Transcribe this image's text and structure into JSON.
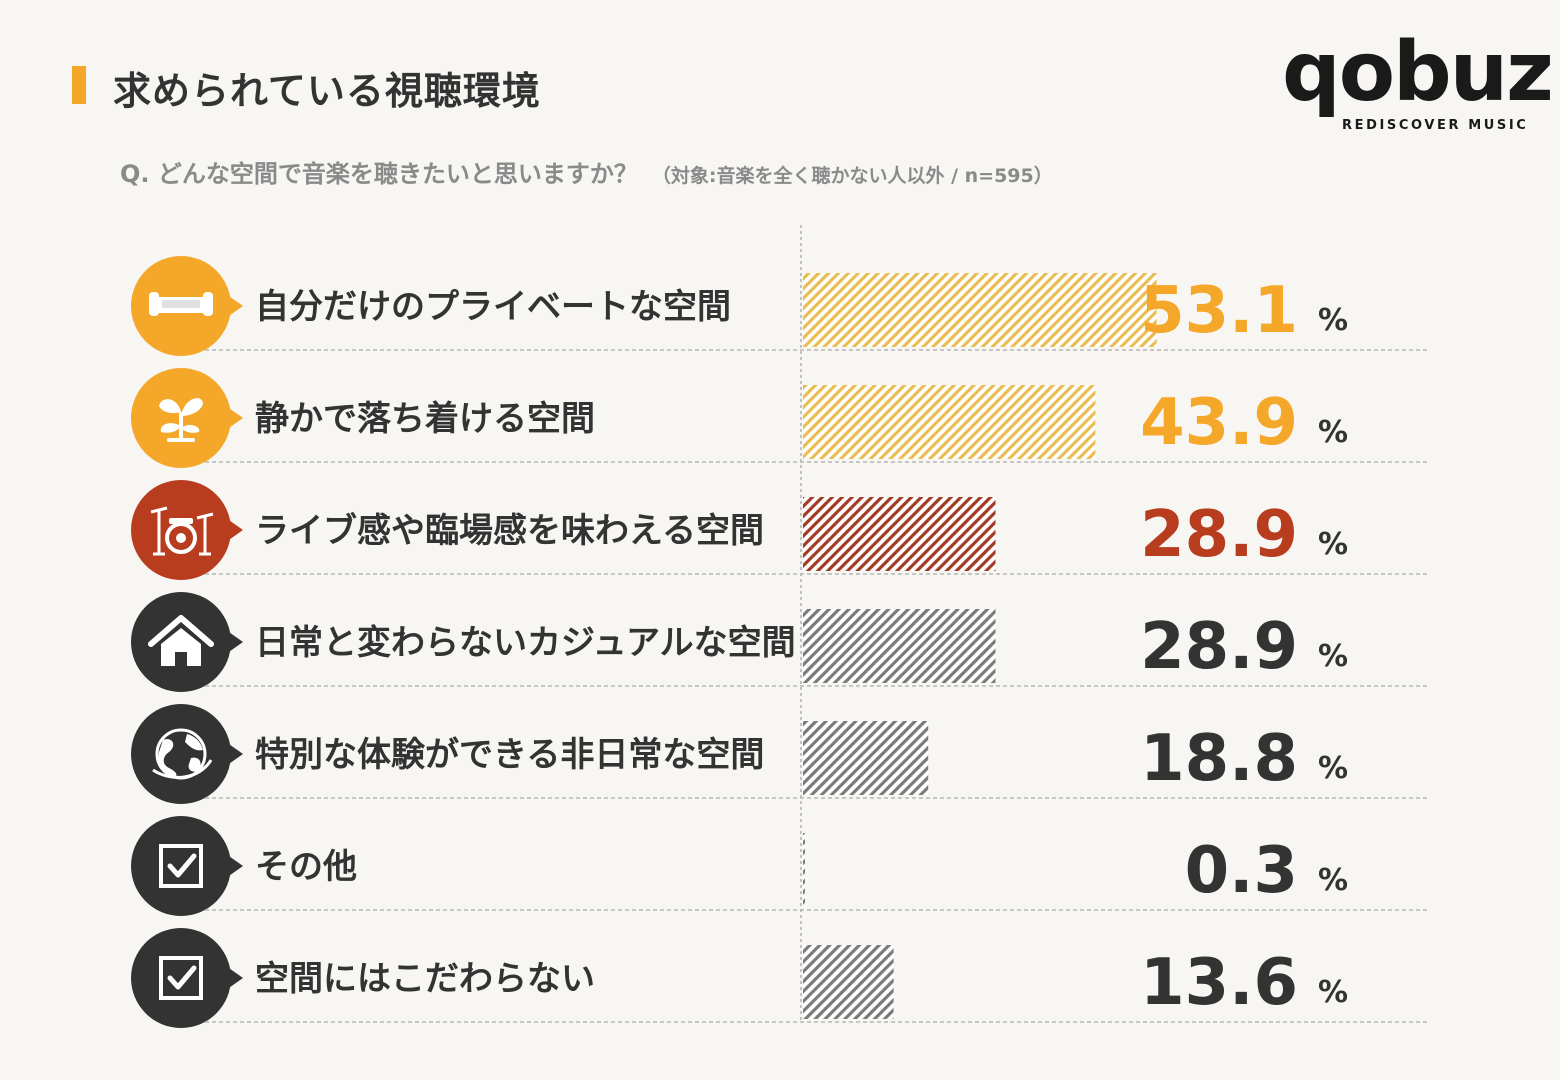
{
  "header": {
    "title": "求められている視聴環境",
    "question": "Q. どんな空間で音楽を聴きたいと思いますか？",
    "note": "（対象:音楽を全く聴かない人以外 / n=595）"
  },
  "logo": {
    "wordmark": "qobuz",
    "tagline": "REDISCOVER MUSIC"
  },
  "colors": {
    "accent": "#f4a728",
    "highlight_value": "#f4a728",
    "drum_accent": "#b83c1e",
    "dark": "#333333",
    "bar_gold": "#e9bd52",
    "bar_red": "#a13a24",
    "bar_gray": "#7a7a7a"
  },
  "chart_data": {
    "type": "bar",
    "orientation": "horizontal",
    "unit": "%",
    "xlim": [
      0,
      100
    ],
    "categories": [
      "自分だけのプライベートな空間",
      "静かで落ち着ける空間",
      "ライブ感や臨場感を味わえる空間",
      "日常と変わらないカジュアルな空間",
      "特別な体験ができる非日常な空間",
      "その他",
      "空間にはこだわらない"
    ],
    "values": [
      53.1,
      43.9,
      28.9,
      28.9,
      18.8,
      0.3,
      13.6
    ],
    "value_labels": [
      "53.1",
      "43.9",
      "28.9",
      "28.9",
      "18.8",
      "0.3",
      "13.6"
    ],
    "icons": [
      "sofa-icon",
      "sprout-icon",
      "drum-kit-icon",
      "house-icon",
      "globe-icon",
      "checkbox-icon",
      "checkbox-icon"
    ],
    "bar_colors": [
      "#e9bd52",
      "#e9bd52",
      "#a13a24",
      "#7a7a7a",
      "#7a7a7a",
      "#7a7a7a",
      "#7a7a7a"
    ],
    "icon_colors": [
      "#f4a728",
      "#f4a728",
      "#b83c1e",
      "#333333",
      "#333333",
      "#333333",
      "#333333"
    ],
    "value_colors": [
      "#f4a728",
      "#f4a728",
      "#b83c1e",
      "#333333",
      "#333333",
      "#333333",
      "#333333"
    ],
    "bar_pattern": "diagonal-hatch",
    "grid": false
  }
}
